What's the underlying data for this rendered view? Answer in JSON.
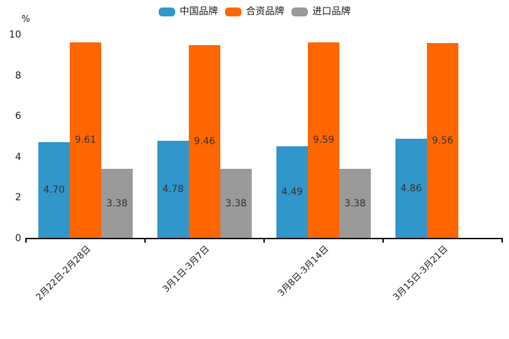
{
  "chart_data": {
    "type": "bar",
    "title": "",
    "xlabel": "",
    "ylabel": "%",
    "ylim": [
      0,
      10
    ],
    "yticks": [
      0,
      2,
      4,
      6,
      8,
      10
    ],
    "grid": false,
    "legend_position": "top-center",
    "categories": [
      "2月22日-2月28日",
      "3月1日-3月7日",
      "3月8日-3月14日",
      "3月15日-3月21日"
    ],
    "series": [
      {
        "name": "中国品牌",
        "color": "#3196CA",
        "values": [
          4.7,
          4.78,
          4.49,
          4.86
        ]
      },
      {
        "name": "合资品牌",
        "color": "#FF6600",
        "values": [
          9.61,
          9.46,
          9.59,
          9.56
        ]
      },
      {
        "name": "进口品牌",
        "color": "#9A9A9A",
        "values": [
          3.38,
          3.38,
          3.38,
          null
        ]
      }
    ],
    "value_label_decimals": 2,
    "colors": {
      "axis": "#000000",
      "tick_label": "#1a1a1a",
      "value_label": "#333333",
      "background": "#ffffff"
    }
  }
}
